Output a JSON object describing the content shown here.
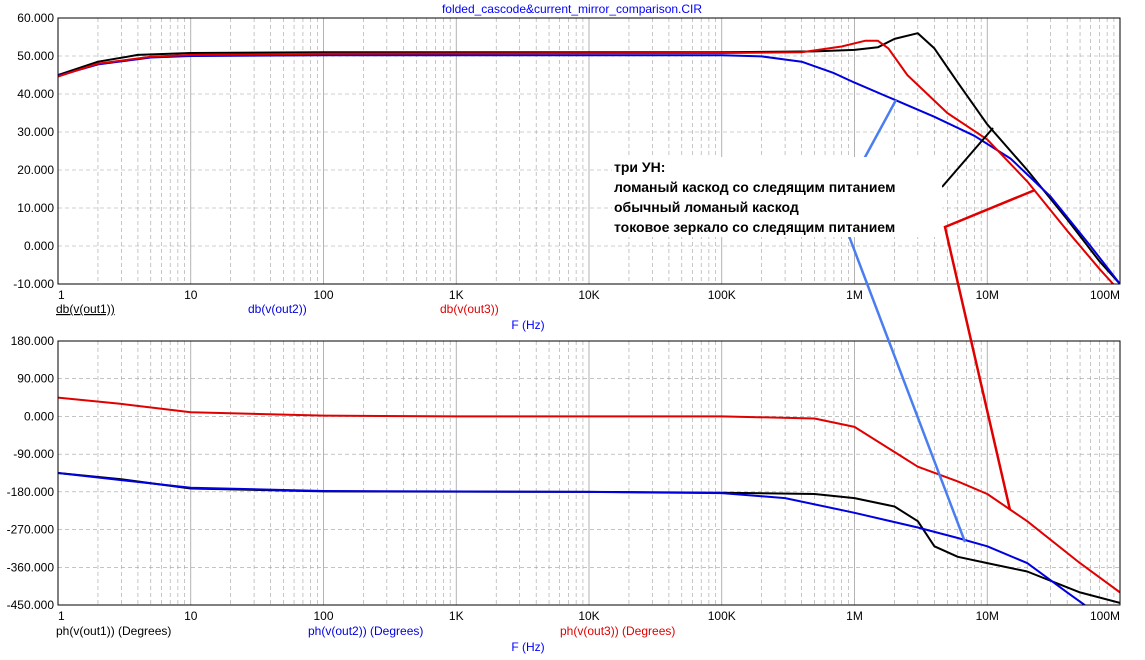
{
  "window": {
    "title": "folded_cascode&current_mirror_comparison.CIR"
  },
  "colors": {
    "out1": "#000000",
    "out2": "#0000e0",
    "out3": "#e00000",
    "pointer_blue": "#4a7ef0",
    "grid": "#a0a0a0"
  },
  "chart_data": [
    {
      "type": "line",
      "xscale": "log",
      "xlim": [
        1,
        100000000
      ],
      "x_ticks": [
        "1",
        "10",
        "100",
        "1K",
        "10K",
        "100K",
        "1M",
        "10M",
        "100M"
      ],
      "ylim": [
        -10,
        60
      ],
      "y_ticks": [
        "60.000",
        "50.000",
        "40.000",
        "30.000",
        "20.000",
        "10.000",
        "0.000",
        "-10.000"
      ],
      "xlabel": "F (Hz)",
      "grid": true,
      "legend": [
        "db(v(out1))",
        "db(v(out2))",
        "db(v(out3))"
      ],
      "series": [
        {
          "name": "db(v(out1))",
          "color": "#000000",
          "points": [
            [
              1,
              45
            ],
            [
              2,
              48.5
            ],
            [
              4,
              50.3
            ],
            [
              10,
              50.8
            ],
            [
              100,
              51
            ],
            [
              1000,
              51
            ],
            [
              100000,
              51
            ],
            [
              500000,
              51.2
            ],
            [
              1000000,
              51.6
            ],
            [
              1500000,
              52.3
            ],
            [
              2000000,
              54.5
            ],
            [
              3000000,
              56
            ],
            [
              4000000,
              52
            ],
            [
              6000000,
              43
            ],
            [
              10000000,
              32
            ],
            [
              20000000,
              20
            ],
            [
              40000000,
              7
            ],
            [
              70000000,
              -4
            ],
            [
              100000000,
              -10
            ]
          ]
        },
        {
          "name": "db(v(out2))",
          "color": "#0000e0",
          "points": [
            [
              1,
              44.8
            ],
            [
              2,
              47.8
            ],
            [
              5,
              49.6
            ],
            [
              10,
              50
            ],
            [
              100,
              50.2
            ],
            [
              100000,
              50.2
            ],
            [
              200000,
              49.9
            ],
            [
              400000,
              48.5
            ],
            [
              700000,
              45.5
            ],
            [
              1000000,
              43
            ],
            [
              2000000,
              38.5
            ],
            [
              4000000,
              34
            ],
            [
              8000000,
              29
            ],
            [
              15000000,
              23
            ],
            [
              30000000,
              13
            ],
            [
              60000000,
              0
            ],
            [
              100000000,
              -10
            ]
          ]
        },
        {
          "name": "db(v(out3))",
          "color": "#e00000",
          "points": [
            [
              1,
              44.6
            ],
            [
              2,
              48
            ],
            [
              5,
              49.8
            ],
            [
              10,
              50.3
            ],
            [
              100,
              50.6
            ],
            [
              100000,
              50.8
            ],
            [
              400000,
              51
            ],
            [
              800000,
              52.5
            ],
            [
              1200000,
              54
            ],
            [
              1500000,
              54
            ],
            [
              1800000,
              52
            ],
            [
              2500000,
              45
            ],
            [
              5000000,
              35
            ],
            [
              10000000,
              28
            ],
            [
              20000000,
              17
            ],
            [
              40000000,
              4
            ],
            [
              70000000,
              -6
            ],
            [
              100000000,
              -12
            ]
          ]
        }
      ]
    },
    {
      "type": "line",
      "xscale": "log",
      "xlim": [
        1,
        100000000
      ],
      "x_ticks": [
        "1",
        "10",
        "100",
        "1K",
        "10K",
        "100K",
        "1M",
        "10M",
        "100M"
      ],
      "ylim": [
        -450,
        180
      ],
      "y_ticks": [
        "180.000",
        "90.000",
        "0.000",
        "-90.000",
        "-180.000",
        "-270.000",
        "-360.000",
        "-450.000"
      ],
      "xlabel": "F (Hz)",
      "grid": true,
      "legend": [
        "ph(v(out1)) (Degrees)",
        "ph(v(out2)) (Degrees)",
        "ph(v(out3)) (Degrees)"
      ],
      "series": [
        {
          "name": "ph(v(out1)) (Degrees)",
          "color": "#000000",
          "points": [
            [
              1,
              -135
            ],
            [
              3,
              -150
            ],
            [
              10,
              -172
            ],
            [
              100,
              -179
            ],
            [
              10000,
              -180
            ],
            [
              100000,
              -182
            ],
            [
              500000,
              -185
            ],
            [
              1000000,
              -195
            ],
            [
              2000000,
              -215
            ],
            [
              3000000,
              -250
            ],
            [
              4000000,
              -310
            ],
            [
              6000000,
              -335
            ],
            [
              10000000,
              -350
            ],
            [
              20000000,
              -370
            ],
            [
              50000000,
              -420
            ],
            [
              100000000,
              -445
            ]
          ]
        },
        {
          "name": "ph(v(out2)) (Degrees)",
          "color": "#0000e0",
          "points": [
            [
              1,
              -135
            ],
            [
              3,
              -152
            ],
            [
              10,
              -170
            ],
            [
              100,
              -178
            ],
            [
              10000,
              -180
            ],
            [
              100000,
              -183
            ],
            [
              300000,
              -195
            ],
            [
              1000000,
              -230
            ],
            [
              3000000,
              -265
            ],
            [
              6000000,
              -290
            ],
            [
              10000000,
              -310
            ],
            [
              20000000,
              -350
            ],
            [
              40000000,
              -420
            ],
            [
              60000000,
              -460
            ]
          ]
        },
        {
          "name": "ph(v(out3)) (Degrees)",
          "color": "#e00000",
          "points": [
            [
              1,
              45
            ],
            [
              3,
              30
            ],
            [
              10,
              10
            ],
            [
              100,
              2
            ],
            [
              1000,
              0
            ],
            [
              100000,
              0
            ],
            [
              500000,
              -5
            ],
            [
              1000000,
              -25
            ],
            [
              2000000,
              -85
            ],
            [
              3000000,
              -120
            ],
            [
              6000000,
              -155
            ],
            [
              10000000,
              -185
            ],
            [
              20000000,
              -250
            ],
            [
              50000000,
              -350
            ],
            [
              100000000,
              -420
            ]
          ]
        }
      ]
    }
  ],
  "annotation": {
    "lines": [
      "три УН:",
      "ломаный каскод со следящим питанием",
      "обычный ломаный каскод",
      "токовое зеркало со следящим питанием"
    ]
  }
}
